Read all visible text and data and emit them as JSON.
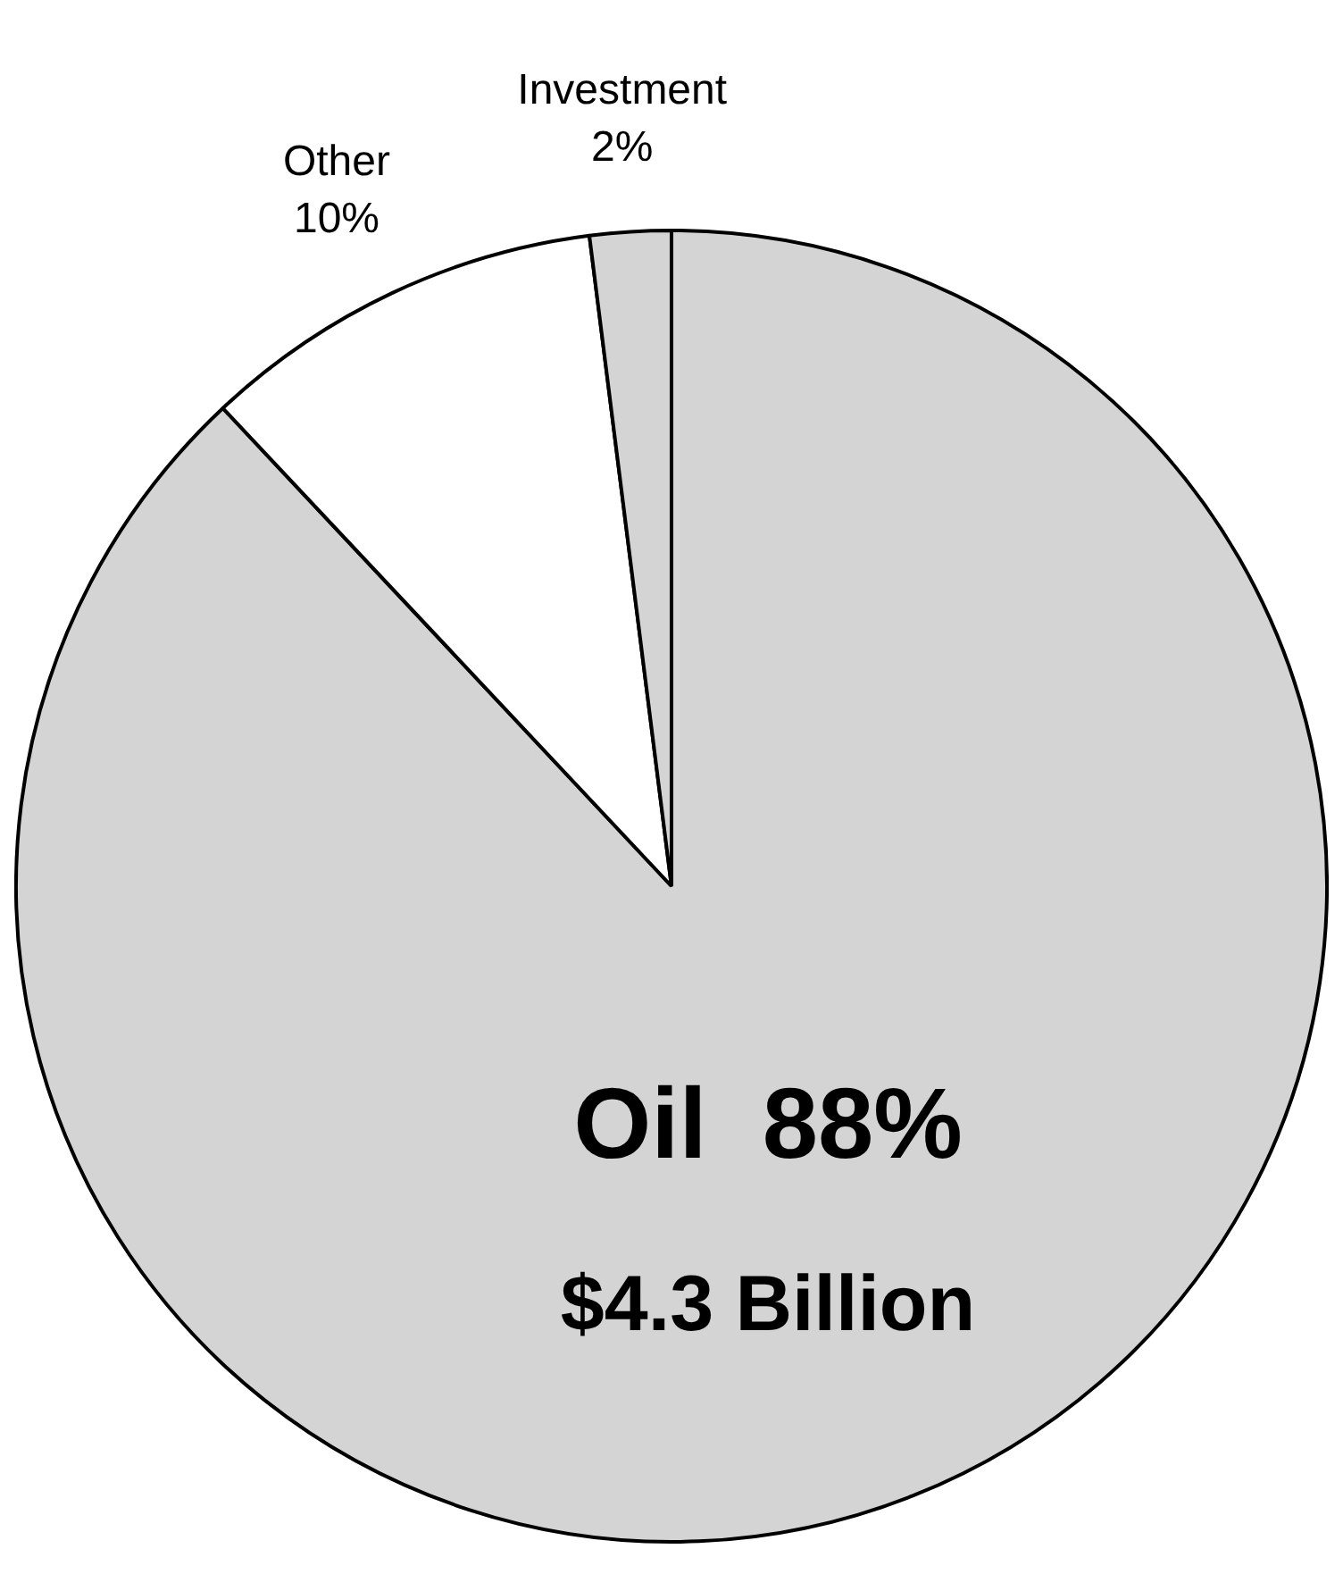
{
  "chart_data": {
    "type": "pie",
    "categories": [
      "Oil",
      "Other",
      "Investment"
    ],
    "values": [
      88,
      10,
      2
    ],
    "value_labels": [
      "88%",
      "10%",
      "2%"
    ],
    "colors": [
      "#d4d4d4",
      "#ffffff",
      "#d4d4d4"
    ],
    "annotations": [
      "$4.3 Billion"
    ],
    "legend": false
  }
}
